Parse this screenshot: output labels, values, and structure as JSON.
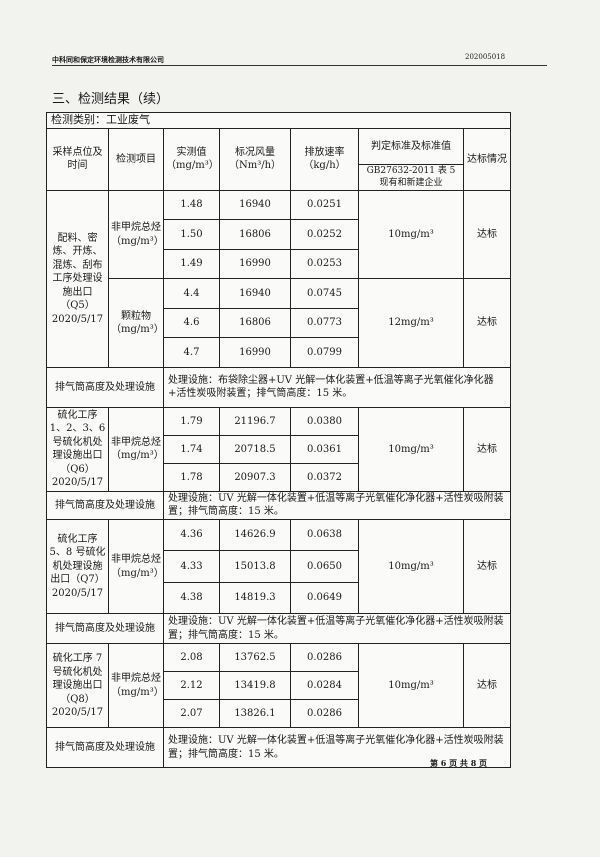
{
  "header": {
    "company": "中科同和保定环境检测技术有限公司",
    "report_no": "202005018"
  },
  "section_title": "三、检测结果（续）",
  "category": "检测类别：工业废气",
  "columns": {
    "location": "采样点位及时间",
    "item": "检测项目",
    "measured": "实测值（mg/m³）",
    "flow": "标况风量（Nm³/h）",
    "rate": "排放速率（kg/h）",
    "standard_title": "判定标准及标准值",
    "standard_ref": "GB27632-2011 表 5 现有和新建企业",
    "result": "达标情况"
  },
  "facility_label": "排气筒高度及处理设施",
  "groups": [
    {
      "location": "配料、密炼、开炼、混炼、刮布工序处理设施出口（Q5）2020/5/17",
      "items": [
        {
          "name": "非甲烷总烃（mg/m³）",
          "standard": "10mg/m³",
          "result": "达标",
          "rows": [
            [
              "1.48",
              "16940",
              "0.0251"
            ],
            [
              "1.50",
              "16806",
              "0.0252"
            ],
            [
              "1.49",
              "16990",
              "0.0253"
            ]
          ]
        },
        {
          "name": "颗粒物（mg/m³）",
          "standard": "12mg/m³",
          "result": "达标",
          "rows": [
            [
              "4.4",
              "16940",
              "0.0745"
            ],
            [
              "4.6",
              "16806",
              "0.0773"
            ],
            [
              "4.7",
              "16990",
              "0.0799"
            ]
          ]
        }
      ],
      "facility": "处理设施：布袋除尘器+UV 光解一体化装置+低温等离子光氧催化净化器+活性炭吸附装置；排气筒高度：15 米。"
    },
    {
      "location": "硫化工序 1、2、3、6 号硫化机处理设施出口（Q6）2020/5/17",
      "items": [
        {
          "name": "非甲烷总烃（mg/m³）",
          "standard": "10mg/m³",
          "result": "达标",
          "rows": [
            [
              "1.79",
              "21196.7",
              "0.0380"
            ],
            [
              "1.74",
              "20718.5",
              "0.0361"
            ],
            [
              "1.78",
              "20907.3",
              "0.0372"
            ]
          ]
        }
      ],
      "facility": "处理设施：UV 光解一体化装置+低温等离子光氧催化净化器+活性炭吸附装置；排气筒高度：15 米。"
    },
    {
      "location": "硫化工序 5、8 号硫化机处理设施出口（Q7）2020/5/17",
      "items": [
        {
          "name": "非甲烷总烃（mg/m³）",
          "standard": "10mg/m³",
          "result": "达标",
          "rows": [
            [
              "4.36",
              "14626.9",
              "0.0638"
            ],
            [
              "4.33",
              "15013.8",
              "0.0650"
            ],
            [
              "4.38",
              "14819.3",
              "0.0649"
            ]
          ]
        }
      ],
      "facility": "处理设施：UV 光解一体化装置+低温等离子光氧催化净化器+活性炭吸附装置；排气筒高度：15 米。"
    },
    {
      "location": "硫化工序 7 号硫化机处理设施出口（Q8）2020/5/17",
      "items": [
        {
          "name": "非甲烷总烃（mg/m³）",
          "standard": "10mg/m³",
          "result": "达标",
          "rows": [
            [
              "2.08",
              "13762.5",
              "0.0286"
            ],
            [
              "2.12",
              "13419.8",
              "0.0284"
            ],
            [
              "2.07",
              "13826.1",
              "0.0286"
            ]
          ]
        }
      ],
      "facility": "处理设施：UV 光解一体化装置+低温等离子光氧催化净化器+活性炭吸附装置；排气筒高度：15 米。"
    }
  ],
  "footer": "第 6 页  共 8 页"
}
